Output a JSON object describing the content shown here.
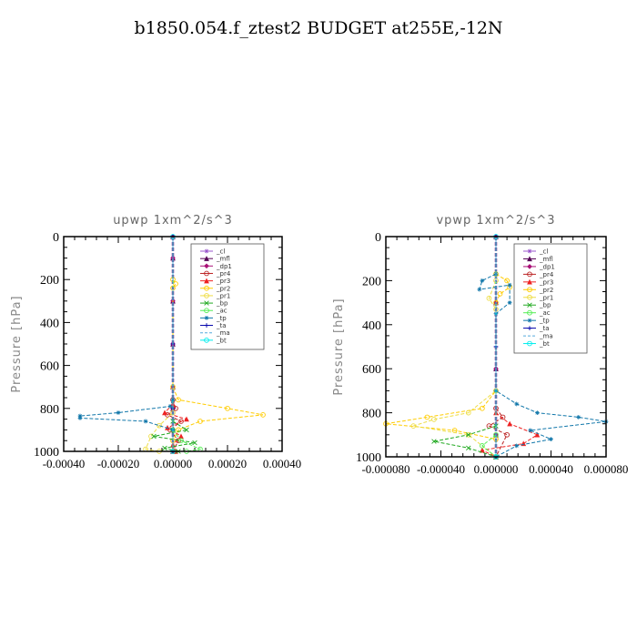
{
  "title": "b1850.054.f_ztest2  BUDGET at255E,-12N",
  "chart_data": [
    {
      "type": "line",
      "title": "upwp   1xm^2/s^3",
      "ylabel": "Pressure [hPa]",
      "xlabel": "",
      "xlim": [
        -0.0004,
        0.0004
      ],
      "ylim": [
        1000,
        0
      ],
      "xticks": [
        -0.0004,
        -0.0002,
        0,
        0.0002,
        0.0004
      ],
      "xtick_labels": [
        "-0.00040",
        "-0.00020",
        "0.00000",
        "0.00020",
        "0.00040"
      ],
      "yticks": [
        0,
        200,
        400,
        600,
        800,
        1000
      ],
      "ytick_labels": [
        "0",
        "200",
        "400",
        "600",
        "800",
        "1000"
      ],
      "legend_position": "top-right",
      "series": [
        {
          "name": "_cl",
          "color": "#9955cc",
          "marker": "star",
          "points": [
            [
              0,
              0
            ],
            [
              0,
              100
            ],
            [
              0,
              300
            ],
            [
              0,
              500
            ],
            [
              0,
              700
            ],
            [
              0,
              800
            ],
            [
              0,
              900
            ],
            [
              0,
              1000
            ]
          ]
        },
        {
          "name": "_mfl",
          "color": "#550055",
          "marker": "tri",
          "points": [
            [
              0,
              0
            ],
            [
              0,
              100
            ],
            [
              0,
              300
            ],
            [
              0,
              500
            ],
            [
              0,
              700
            ],
            [
              0,
              800
            ],
            [
              0,
              900
            ],
            [
              0,
              1000
            ]
          ]
        },
        {
          "name": "_dp1",
          "color": "#aa1177",
          "marker": "diamond",
          "points": [
            [
              0,
              0
            ],
            [
              0,
              100
            ],
            [
              0,
              300
            ],
            [
              0,
              500
            ],
            [
              0,
              700
            ],
            [
              0,
              800
            ],
            [
              0,
              900
            ],
            [
              0,
              1000
            ]
          ]
        },
        {
          "name": "_pr4",
          "color": "#bb2222",
          "marker": "circle",
          "points": [
            [
              0,
              760
            ],
            [
              1e-05,
              800
            ],
            [
              -2e-05,
              830
            ],
            [
              3e-05,
              860
            ],
            [
              -1e-05,
              900
            ],
            [
              2e-05,
              950
            ],
            [
              0,
              1000
            ]
          ]
        },
        {
          "name": "_pr3",
          "color": "#ee2222",
          "marker": "tri",
          "points": [
            [
              0,
              780
            ],
            [
              -3e-05,
              820
            ],
            [
              5e-05,
              850
            ],
            [
              -2e-05,
              890
            ],
            [
              3e-05,
              930
            ],
            [
              0,
              970
            ],
            [
              1e-05,
              1000
            ]
          ]
        },
        {
          "name": "_pr2",
          "color": "#ffcc00",
          "marker": "circle",
          "points": [
            [
              0,
              200
            ],
            [
              1e-05,
              220
            ],
            [
              0,
              240
            ],
            [
              0,
              700
            ],
            [
              2e-05,
              760
            ],
            [
              0.0002,
              800
            ],
            [
              0.00033,
              830
            ],
            [
              0.0001,
              860
            ],
            [
              2e-05,
              900
            ],
            [
              0,
              950
            ],
            [
              0,
              1000
            ]
          ]
        },
        {
          "name": "_pr1",
          "color": "#eedd44",
          "marker": "circle",
          "points": [
            [
              0,
              700
            ],
            [
              0,
              820
            ],
            [
              -5e-05,
              880
            ],
            [
              -8e-05,
              930
            ],
            [
              -0.0001,
              990
            ],
            [
              -5e-05,
              1000
            ]
          ]
        },
        {
          "name": "_bp",
          "color": "#22aa22",
          "marker": "x",
          "points": [
            [
              0,
              860
            ],
            [
              5e-05,
              900
            ],
            [
              -7e-05,
              930
            ],
            [
              8e-05,
              960
            ],
            [
              -3e-05,
              985
            ],
            [
              2e-05,
              1000
            ]
          ]
        },
        {
          "name": "_ac",
          "color": "#55ee55",
          "marker": "circle",
          "points": [
            [
              0,
              900
            ],
            [
              3e-05,
              950
            ],
            [
              0.0001,
              990
            ],
            [
              5e-05,
              1000
            ]
          ]
        },
        {
          "name": "_tp",
          "color": "#1177aa",
          "marker": "star",
          "points": [
            [
              0,
              760
            ],
            [
              -1e-05,
              790
            ],
            [
              -0.0002,
              820
            ],
            [
              -0.00034,
              835
            ],
            [
              -0.00034,
              845
            ],
            [
              -0.0001,
              860
            ],
            [
              0,
              900
            ],
            [
              0,
              1000
            ]
          ]
        },
        {
          "name": "_ta",
          "color": "#0000aa",
          "marker": "plus",
          "points": [
            [
              0,
              0
            ],
            [
              0,
              500
            ],
            [
              0,
              800
            ],
            [
              0,
              1000
            ]
          ]
        },
        {
          "name": "_ma",
          "color": "#55aadd",
          "marker": "none",
          "points": [
            [
              0,
              0
            ],
            [
              0,
              1000
            ]
          ]
        },
        {
          "name": "_bt",
          "color": "#00eeee",
          "marker": "circle",
          "points": [
            [
              0,
              0
            ],
            [
              0,
              1000
            ]
          ]
        }
      ]
    },
    {
      "type": "line",
      "title": "vpwp   1xm^2/s^3",
      "ylabel": "Pressure [hPa]",
      "xlabel": "",
      "xlim": [
        -8e-05,
        8e-05
      ],
      "ylim": [
        1000,
        0
      ],
      "xticks": [
        -8e-05,
        -4e-05,
        0,
        4e-05,
        8e-05
      ],
      "xtick_labels": [
        "-0.000080",
        "-0.000040",
        "0.000000",
        "0.000040",
        "0.000080"
      ],
      "yticks": [
        0,
        200,
        400,
        600,
        800,
        1000
      ],
      "ytick_labels": [
        "0",
        "200",
        "400",
        "600",
        "800",
        "1000"
      ],
      "legend_position": "top-right",
      "series": [
        {
          "name": "_cl",
          "color": "#9955cc",
          "marker": "star",
          "points": [
            [
              0,
              0
            ],
            [
              0,
              300
            ],
            [
              0,
              600
            ],
            [
              0,
              900
            ],
            [
              0,
              1000
            ]
          ]
        },
        {
          "name": "_mfl",
          "color": "#550055",
          "marker": "tri",
          "points": [
            [
              0,
              0
            ],
            [
              0,
              300
            ],
            [
              0,
              600
            ],
            [
              0,
              900
            ],
            [
              0,
              1000
            ]
          ]
        },
        {
          "name": "_dp1",
          "color": "#aa1177",
          "marker": "diamond",
          "points": [
            [
              0,
              0
            ],
            [
              0,
              300
            ],
            [
              0,
              600
            ],
            [
              0,
              900
            ],
            [
              0,
              1000
            ]
          ]
        },
        {
          "name": "_pr4",
          "color": "#bb2222",
          "marker": "circle",
          "points": [
            [
              0,
              780
            ],
            [
              5e-06,
              820
            ],
            [
              -5e-06,
              860
            ],
            [
              8e-06,
              900
            ],
            [
              0,
              1000
            ]
          ]
        },
        {
          "name": "_pr3",
          "color": "#ee2222",
          "marker": "tri",
          "points": [
            [
              0,
              800
            ],
            [
              1e-05,
              850
            ],
            [
              3e-05,
              900
            ],
            [
              2e-05,
              940
            ],
            [
              -1e-05,
              970
            ],
            [
              0,
              1000
            ]
          ]
        },
        {
          "name": "_pr2",
          "color": "#ffcc00",
          "marker": "circle",
          "points": [
            [
              0,
              170
            ],
            [
              8e-06,
              200
            ],
            [
              1e-05,
              230
            ],
            [
              3e-06,
              260
            ],
            [
              0,
              300
            ],
            [
              0,
              700
            ],
            [
              -1e-05,
              780
            ],
            [
              -5e-05,
              820
            ],
            [
              -8e-05,
              850
            ],
            [
              -3e-05,
              880
            ],
            [
              0,
              920
            ],
            [
              0,
              1000
            ]
          ]
        },
        {
          "name": "_pr1",
          "color": "#eedd44",
          "marker": "circle",
          "points": [
            [
              0,
              200
            ],
            [
              -5e-06,
              280
            ],
            [
              0,
              330
            ],
            [
              0,
              700
            ],
            [
              -2e-05,
              800
            ],
            [
              -4.5e-05,
              830
            ],
            [
              -6e-05,
              860
            ],
            [
              -2e-05,
              900
            ],
            [
              0,
              1000
            ]
          ]
        },
        {
          "name": "_bp",
          "color": "#22aa22",
          "marker": "x",
          "points": [
            [
              0,
              860
            ],
            [
              -2e-05,
              900
            ],
            [
              -4.5e-05,
              930
            ],
            [
              -2e-05,
              960
            ],
            [
              0,
              1000
            ]
          ]
        },
        {
          "name": "_ac",
          "color": "#55ee55",
          "marker": "circle",
          "points": [
            [
              0,
              900
            ],
            [
              -1e-05,
              950
            ],
            [
              0,
              1000
            ]
          ]
        },
        {
          "name": "_tp",
          "color": "#1177aa",
          "marker": "star",
          "points": [
            [
              0,
              170
            ],
            [
              -1e-05,
              200
            ],
            [
              -1.2e-05,
              240
            ],
            [
              1e-05,
              220
            ],
            [
              1e-05,
              300
            ],
            [
              0,
              350
            ],
            [
              0,
              700
            ],
            [
              1.5e-05,
              760
            ],
            [
              3e-05,
              800
            ],
            [
              6e-05,
              820
            ],
            [
              8e-05,
              840
            ],
            [
              2.5e-05,
              880
            ],
            [
              4e-05,
              920
            ],
            [
              1.5e-05,
              950
            ],
            [
              0,
              1000
            ]
          ]
        },
        {
          "name": "_ta",
          "color": "#0000aa",
          "marker": "plus",
          "points": [
            [
              0,
              0
            ],
            [
              0,
              500
            ],
            [
              0,
              1000
            ]
          ]
        },
        {
          "name": "_ma",
          "color": "#55aadd",
          "marker": "none",
          "points": [
            [
              0,
              0
            ],
            [
              0,
              1000
            ]
          ]
        },
        {
          "name": "_bt",
          "color": "#00eeee",
          "marker": "circle",
          "points": [
            [
              0,
              0
            ],
            [
              0,
              1000
            ]
          ]
        }
      ]
    }
  ]
}
